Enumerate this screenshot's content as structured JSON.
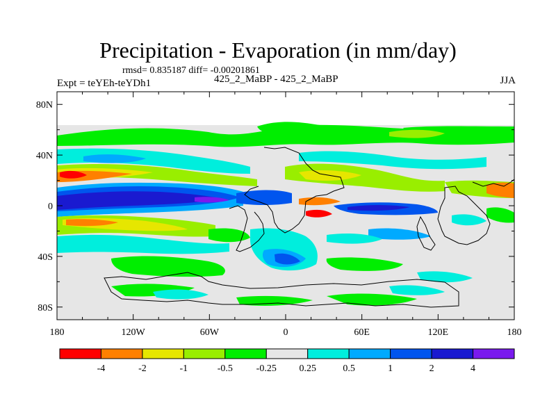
{
  "title": "Precipitation - Evaporation (in mm/day)",
  "stats": "rmsd= 0.835187 diff= -0.00201861",
  "experiment": "Expt = teYEh-teYDh1",
  "subtitle": "425_2_MaBP - 425_2_MaBP",
  "season": "JJA",
  "map": {
    "projection": "cylindrical equidistant",
    "lon_range": [
      -180,
      180
    ],
    "lat_range": [
      -90,
      90
    ],
    "x_ticks": [
      {
        "value": -180,
        "label": "180"
      },
      {
        "value": -120,
        "label": "120W"
      },
      {
        "value": -60,
        "label": "60W"
      },
      {
        "value": 0,
        "label": "0"
      },
      {
        "value": 60,
        "label": "60E"
      },
      {
        "value": 120,
        "label": "120E"
      },
      {
        "value": 180,
        "label": "180"
      }
    ],
    "y_ticks": [
      {
        "value": 80,
        "label": "80N"
      },
      {
        "value": 40,
        "label": "40N"
      },
      {
        "value": 0,
        "label": "0"
      },
      {
        "value": -40,
        "label": "40S"
      },
      {
        "value": -80,
        "label": "80S"
      }
    ],
    "background_color": "#e6e6e6"
  },
  "colorbar": {
    "colors": [
      "#ff0000",
      "#ff8000",
      "#e6e600",
      "#99ee00",
      "#00ee00",
      "#e6e6e6",
      "#00eedd",
      "#00aaff",
      "#0055ee",
      "#1a1ad0",
      "#7a1aee"
    ],
    "labels": [
      "-4",
      "-2",
      "-1",
      "-0.5",
      "-0.25",
      "0.25",
      "0.5",
      "1",
      "2",
      "4"
    ]
  },
  "chart_data": {
    "type": "heatmap",
    "title": "Precipitation - Evaporation (in mm/day)",
    "variable": "P - E difference",
    "units": "mm/day",
    "levels": [
      -4,
      -2,
      -1,
      -0.5,
      -0.25,
      0.25,
      0.5,
      1,
      2,
      4
    ],
    "features": [
      {
        "region": "tropical central-east Pacific along the equator",
        "lon": [
          -180,
          -80
        ],
        "lat": [
          -5,
          8
        ],
        "value": 3
      },
      {
        "region": "Pacific band north of the equator",
        "lon": [
          -180,
          -110
        ],
        "lat": [
          12,
          18
        ],
        "value": -3
      },
      {
        "region": "South Pacific band near 15S",
        "lon": [
          -165,
          -120
        ],
        "lat": [
          -18,
          -12
        ],
        "value": -3
      },
      {
        "region": "Indian Ocean near 0-10S",
        "lon": [
          65,
          100
        ],
        "lat": [
          -5,
          -2
        ],
        "value": 1.5
      },
      {
        "region": "Southern Ocean south of Africa",
        "lon": [
          -20,
          20
        ],
        "lat": [
          -50,
          -38
        ],
        "value": 1.5
      },
      {
        "region": "western Pacific near 10N",
        "lon": [
          150,
          180
        ],
        "lat": [
          5,
          15
        ],
        "value": -2
      }
    ]
  }
}
